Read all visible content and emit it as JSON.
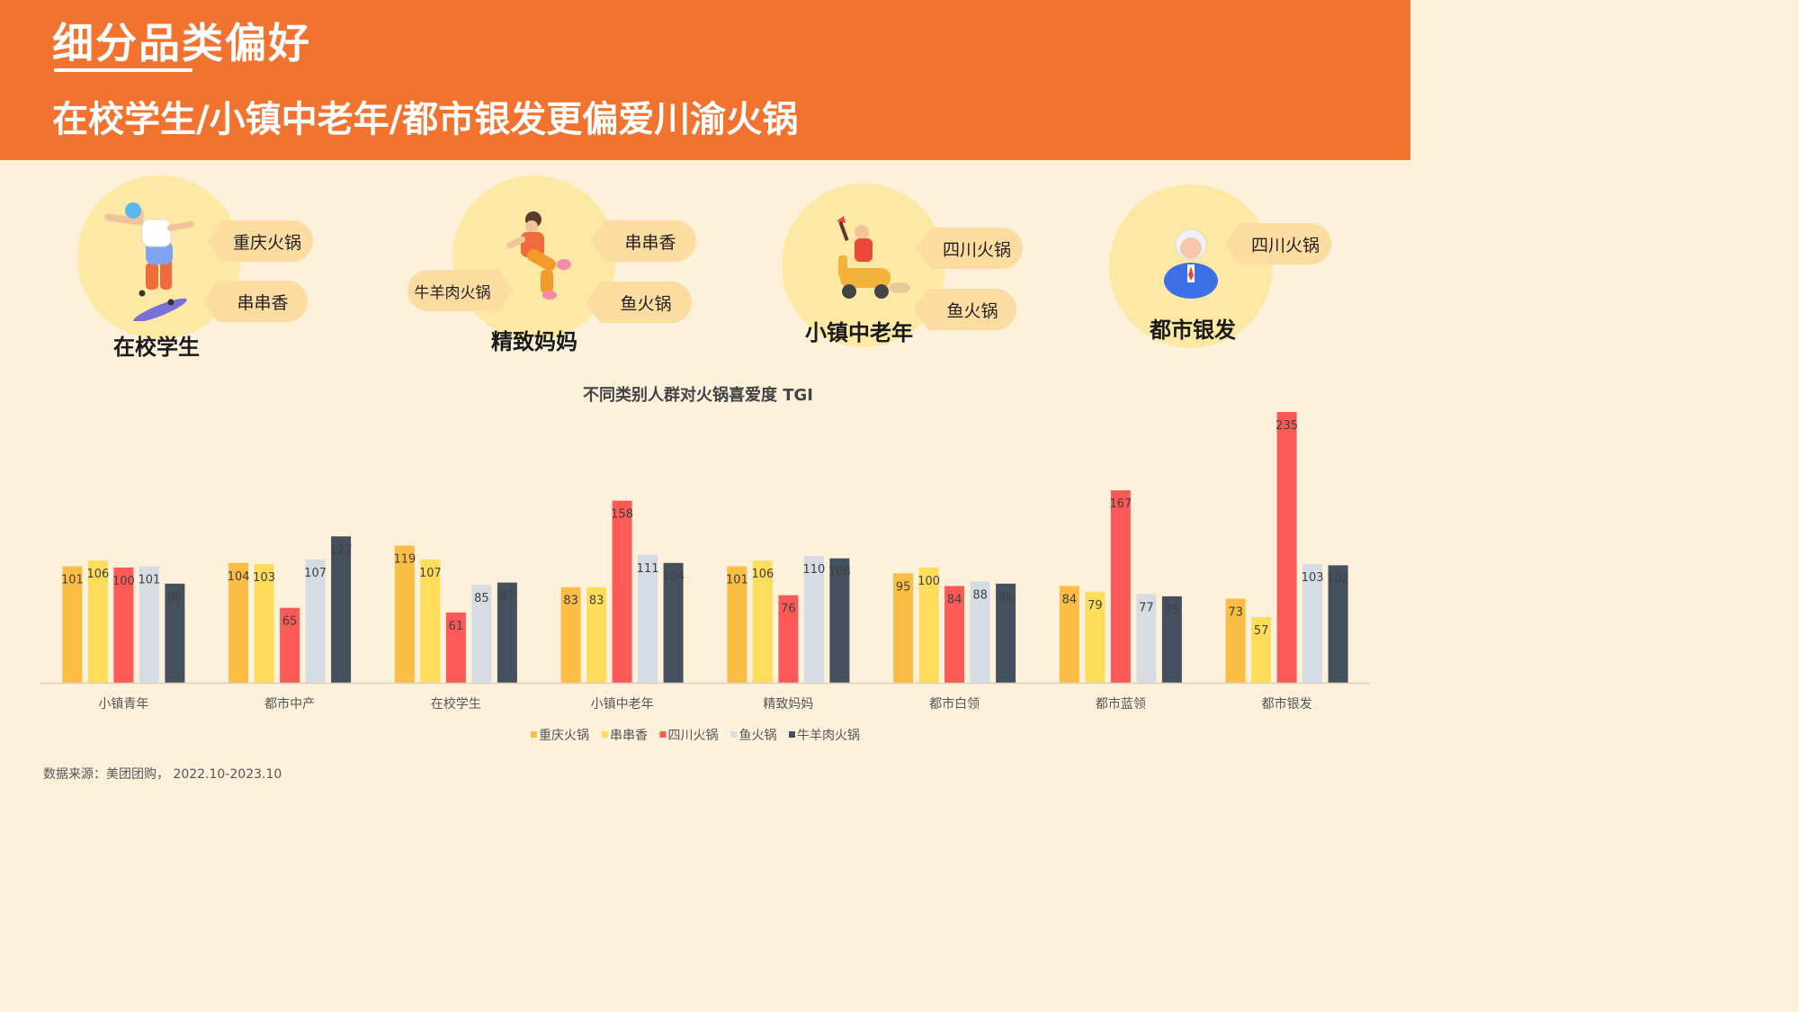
{
  "header": {
    "title": "细分品类偏好",
    "subtitle": "在校学生/小镇中老年/都市银发更偏爱川渝火锅"
  },
  "personas": [
    {
      "name": "在校学生",
      "tags": [
        "重庆火锅",
        "串串香"
      ]
    },
    {
      "name": "精致妈妈",
      "tags": [
        "串串香",
        "牛羊肉火锅",
        "鱼火锅"
      ]
    },
    {
      "name": "小镇中老年",
      "tags": [
        "四川火锅",
        "鱼火锅"
      ]
    },
    {
      "name": "都市银发",
      "tags": [
        "四川火锅"
      ]
    }
  ],
  "colors": {
    "header_bg": "#f27330",
    "page_bg": "#fdf1dc",
    "circle": "#fde9a4",
    "tag": "#fcdca0"
  },
  "chart_data": {
    "type": "bar",
    "title": "不同类别人群对火锅喜爱度 TGI",
    "categories": [
      "小镇青年",
      "都市中产",
      "在校学生",
      "小镇中老年",
      "精致妈妈",
      "都市白领",
      "都市蓝领",
      "都市银发"
    ],
    "series": [
      {
        "name": "重庆火锅",
        "color": "#fbbd44",
        "values": [
          101,
          104,
          119,
          83,
          101,
          95,
          84,
          73
        ]
      },
      {
        "name": "串串香",
        "color": "#fedd5b",
        "values": [
          106,
          103,
          107,
          83,
          106,
          100,
          79,
          57
        ]
      },
      {
        "name": "四川火锅",
        "color": "#fd5a57",
        "values": [
          100,
          65,
          61,
          158,
          76,
          84,
          167,
          235
        ]
      },
      {
        "name": "鱼火锅",
        "color": "#d6dce4",
        "values": [
          101,
          107,
          85,
          111,
          110,
          88,
          77,
          103
        ]
      },
      {
        "name": "牛羊肉火锅",
        "color": "#44505e",
        "values": [
          86,
          127,
          87,
          104,
          108,
          86,
          75,
          102
        ]
      }
    ],
    "ylim": [
      0,
      235
    ],
    "grid": false,
    "legend_position": "bottom",
    "data_labels": true
  },
  "source": "数据来源：美团团购， 2022.10-2023.10"
}
